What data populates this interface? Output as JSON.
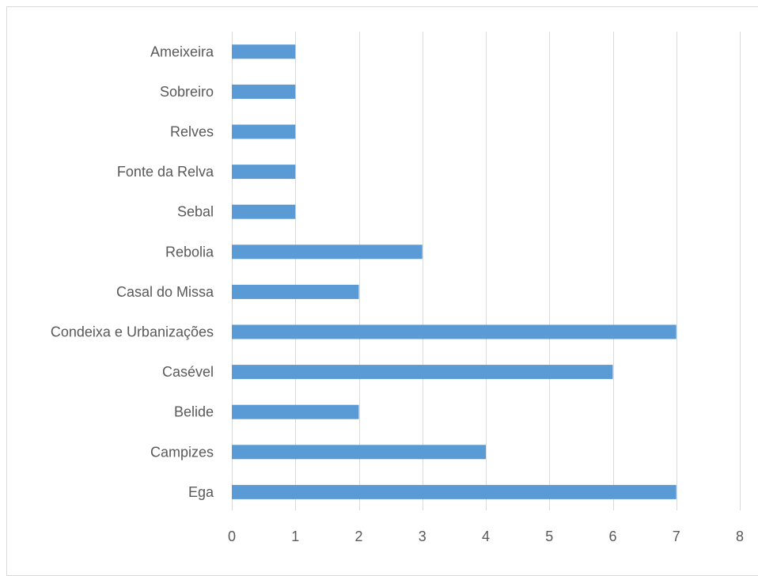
{
  "chart_data": {
    "type": "bar",
    "orientation": "horizontal",
    "categories": [
      "Ameixeira",
      "Sobreiro",
      "Relves",
      "Fonte da Relva",
      "Sebal",
      "Rebolia",
      "Casal do Missa",
      "Condeixa e Urbanizações",
      "Casével",
      "Belide",
      "Campizes",
      "Ega"
    ],
    "values": [
      1,
      1,
      1,
      1,
      1,
      3,
      2,
      7,
      6,
      2,
      4,
      7
    ],
    "xlim": [
      0,
      8
    ],
    "xticks": [
      "0",
      "1",
      "2",
      "3",
      "4",
      "5",
      "6",
      "7",
      "8"
    ],
    "grid": "vertical",
    "legend": "none",
    "bar_color": "#5b9bd5",
    "grid_color": "#d9d9d9",
    "text_color": "#595959"
  }
}
